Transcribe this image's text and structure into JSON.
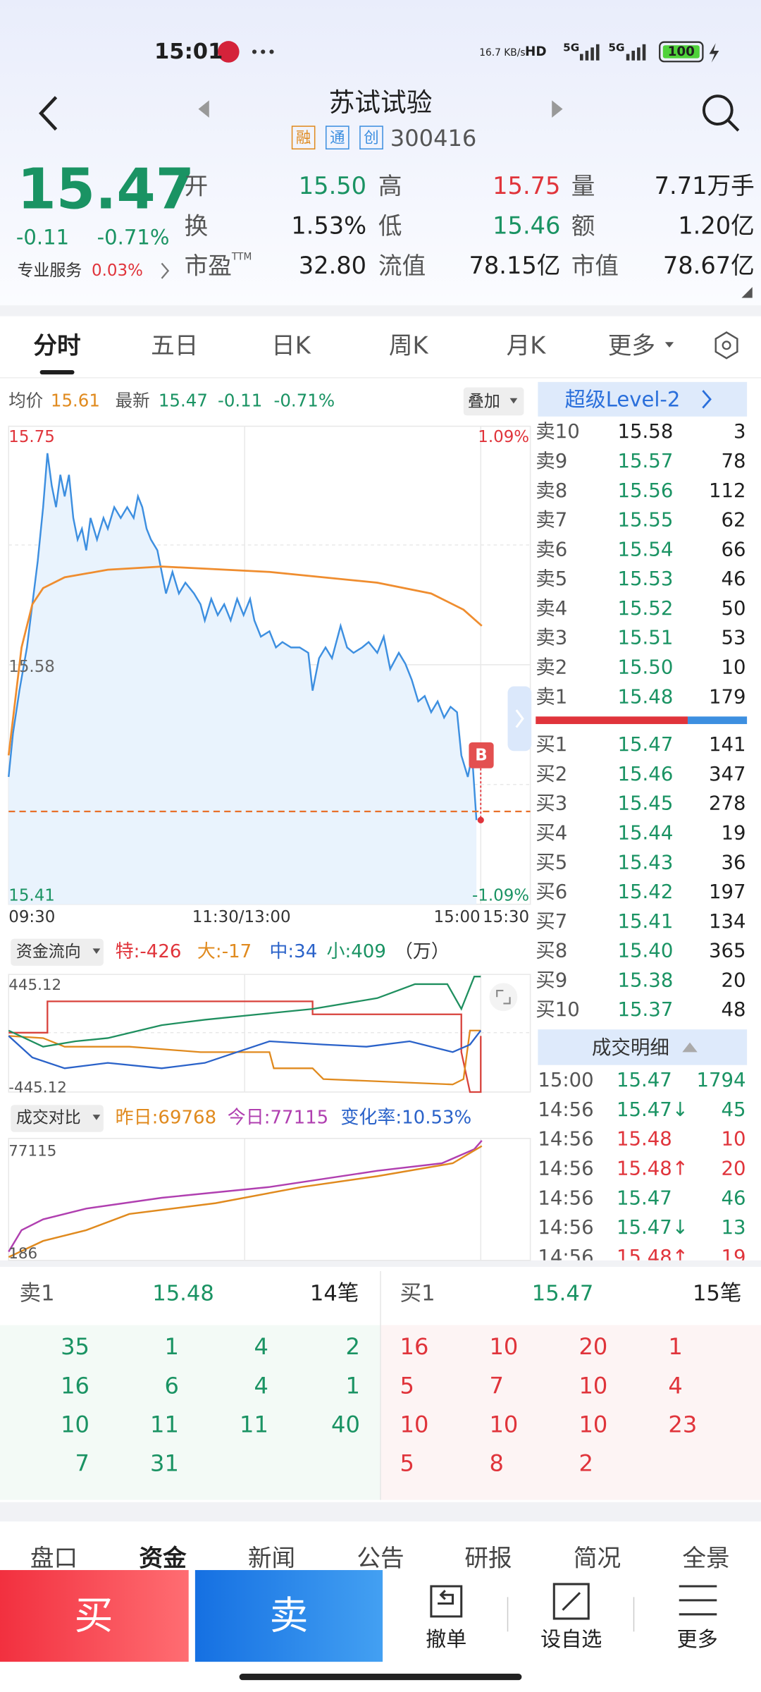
{
  "status_bar": {
    "time": "15:01",
    "network_speed": "16.7 KB/s",
    "icons": [
      "HD",
      "5G",
      "5G"
    ],
    "battery": "100"
  },
  "header": {
    "title": "苏试试验",
    "tags": [
      "融",
      "通",
      "创"
    ],
    "code": "300416"
  },
  "quote": {
    "price": "15.47",
    "change": "-0.11",
    "change_pct": "-0.71%",
    "service_label": "专业服务",
    "service_value": "0.03%",
    "fields": [
      {
        "label": "开",
        "value": "15.50",
        "color": "#1a9363"
      },
      {
        "label": "高",
        "value": "15.75",
        "color": "#e0343b"
      },
      {
        "label": "量",
        "value": "7.71万手",
        "color": "#1f1f1f"
      },
      {
        "label": "换",
        "value": "1.53%",
        "color": "#1f1f1f"
      },
      {
        "label": "低",
        "value": "15.46",
        "color": "#1a9363"
      },
      {
        "label": "额",
        "value": "1.20亿",
        "color": "#1f1f1f"
      },
      {
        "label": "市盈",
        "label_sup": "TTM",
        "value": "32.80",
        "color": "#1f1f1f"
      },
      {
        "label": "流值",
        "value": "78.15亿",
        "color": "#1f1f1f"
      },
      {
        "label": "市值",
        "value": "78.67亿",
        "color": "#1f1f1f"
      }
    ]
  },
  "tabs": [
    "分时",
    "五日",
    "日K",
    "周K",
    "月K",
    "更多"
  ],
  "intraday": {
    "avg_label": "均价",
    "avg": "15.61",
    "latest_label": "最新",
    "latest": "15.47",
    "change": "-0.11",
    "change_pct": "-0.71%",
    "overlay": "叠加",
    "y_high": "15.75",
    "y_mid": "15.58",
    "y_low": "15.41",
    "pct_high": "1.09%",
    "pct_low": "-1.09%",
    "x_labels": [
      "09:30",
      "11:30/13:00",
      "15:00",
      "15:30"
    ],
    "marker": "B"
  },
  "fund_flow": {
    "label": "资金流向",
    "items": [
      {
        "label": "特:",
        "value": "-426",
        "color": "#e0343b"
      },
      {
        "label": "大:",
        "value": "-17",
        "color": "#e08a1e"
      },
      {
        "label": "中:",
        "value": "34",
        "color": "#2a62c9"
      },
      {
        "label": "小:",
        "value": "409",
        "color": "#1a9363"
      }
    ],
    "unit": "（万）",
    "y_high": "445.12",
    "y_low": "-445.12"
  },
  "volume_compare": {
    "label": "成交对比",
    "yesterday_label": "昨日:",
    "yesterday": "69768",
    "today_label": "今日:",
    "today": "77115",
    "change_label": "变化率:",
    "change": "10.53%",
    "y_high": "77115",
    "y_low": "186"
  },
  "level2": {
    "title": "超级Level-2",
    "asks": [
      {
        "label": "卖10",
        "price": "15.58",
        "volume": "3",
        "color": "#1f1f1f"
      },
      {
        "label": "卖9",
        "price": "15.57",
        "volume": "78",
        "color": "#1a9363"
      },
      {
        "label": "卖8",
        "price": "15.56",
        "volume": "112",
        "color": "#1a9363"
      },
      {
        "label": "卖7",
        "price": "15.55",
        "volume": "62",
        "color": "#1a9363"
      },
      {
        "label": "卖6",
        "price": "15.54",
        "volume": "66",
        "color": "#1a9363"
      },
      {
        "label": "卖5",
        "price": "15.53",
        "volume": "46",
        "color": "#1a9363"
      },
      {
        "label": "卖4",
        "price": "15.52",
        "volume": "50",
        "color": "#1a9363"
      },
      {
        "label": "卖3",
        "price": "15.51",
        "volume": "53",
        "color": "#1a9363"
      },
      {
        "label": "卖2",
        "price": "15.50",
        "volume": "10",
        "color": "#1a9363"
      },
      {
        "label": "卖1",
        "price": "15.48",
        "volume": "179",
        "color": "#1a9363"
      }
    ],
    "bids": [
      {
        "label": "买1",
        "price": "15.47",
        "volume": "141",
        "color": "#1a9363"
      },
      {
        "label": "买2",
        "price": "15.46",
        "volume": "347",
        "color": "#1a9363"
      },
      {
        "label": "买3",
        "price": "15.45",
        "volume": "278",
        "color": "#1a9363"
      },
      {
        "label": "买4",
        "price": "15.44",
        "volume": "19",
        "color": "#1a9363"
      },
      {
        "label": "买5",
        "price": "15.43",
        "volume": "36",
        "color": "#1a9363"
      },
      {
        "label": "买6",
        "price": "15.42",
        "volume": "197",
        "color": "#1a9363"
      },
      {
        "label": "买7",
        "price": "15.41",
        "volume": "134",
        "color": "#1a9363"
      },
      {
        "label": "买8",
        "price": "15.40",
        "volume": "365",
        "color": "#1a9363"
      },
      {
        "label": "买9",
        "price": "15.38",
        "volume": "20",
        "color": "#1a9363"
      },
      {
        "label": "买10",
        "price": "15.37",
        "volume": "48",
        "color": "#1a9363"
      }
    ]
  },
  "trades": {
    "title": "成交明细",
    "rows": [
      {
        "time": "15:00",
        "price": "15.47",
        "volume": "1794",
        "color": "#1a9363"
      },
      {
        "time": "14:56",
        "price": "15.47",
        "arrow": "↓",
        "volume": "45",
        "color": "#1a9363"
      },
      {
        "time": "14:56",
        "price": "15.48",
        "volume": "10",
        "color": "#e0343b"
      },
      {
        "time": "14:56",
        "price": "15.48",
        "arrow": "↑",
        "volume": "20",
        "color": "#e0343b"
      },
      {
        "time": "14:56",
        "price": "15.47",
        "volume": "46",
        "color": "#1a9363"
      },
      {
        "time": "14:56",
        "price": "15.47",
        "arrow": "↓",
        "volume": "13",
        "color": "#1a9363"
      },
      {
        "time": "14:56",
        "price": "15.48",
        "arrow": "↑",
        "volume": "19",
        "color": "#e0343b"
      }
    ]
  },
  "queue": {
    "ask": {
      "label": "卖1",
      "price": "15.48",
      "count": "14笔",
      "orders": [
        "35",
        "1",
        "4",
        "2",
        "16",
        "6",
        "4",
        "1",
        "10",
        "11",
        "11",
        "40",
        "7",
        "31"
      ]
    },
    "bid": {
      "label": "买1",
      "price": "15.47",
      "count": "15笔",
      "orders": [
        "16",
        "10",
        "20",
        "1",
        "5",
        "7",
        "10",
        "4",
        "10",
        "10",
        "10",
        "23",
        "5",
        "8",
        "2"
      ]
    }
  },
  "bottom_tabs": [
    "盘口",
    "资金",
    "新闻",
    "公告",
    "研报",
    "简况",
    "全景"
  ],
  "actions": {
    "buy": "买",
    "sell": "卖",
    "items": [
      "撤单",
      "设自选",
      "更多"
    ]
  }
}
